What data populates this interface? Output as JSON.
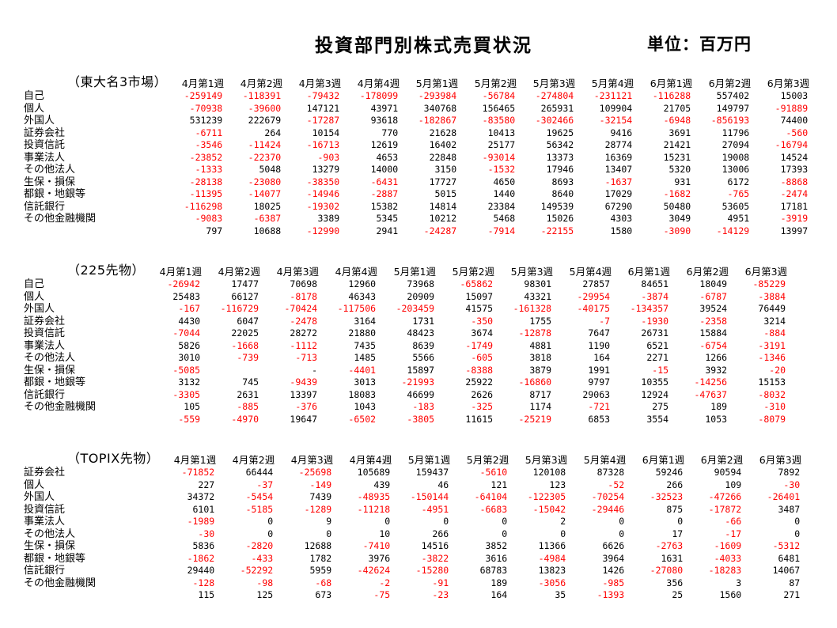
{
  "title": "投資部門別株式売買状況",
  "unit_label": "単位：百万円",
  "columns": [
    "4月第1週",
    "4月第2週",
    "4月第3週",
    "4月第4週",
    "5月第1週",
    "5月第2週",
    "5月第3週",
    "5月第4週",
    "6月第1週",
    "6月第2週",
    "6月第3週"
  ],
  "negative_color": "#ff0000",
  "positive_color": "#000000",
  "sections": [
    {
      "name": "（東大名3市場）",
      "rows": [
        {
          "label": "自己",
          "values": [
            "-259149",
            "-118391",
            "-79432",
            "-178099",
            "-293984",
            "-56784",
            "-274804",
            "-231121",
            "-116288",
            "557402",
            "15003"
          ]
        },
        {
          "label": "個人",
          "values": [
            "-70938",
            "-39600",
            "147121",
            "43971",
            "340768",
            "156465",
            "265931",
            "109904",
            "21705",
            "149797",
            "-91889"
          ]
        },
        {
          "label": "外国人",
          "values": [
            "531239",
            "222679",
            "-17287",
            "93618",
            "-182867",
            "-83580",
            "-302466",
            "-32154",
            "-6948",
            "-856193",
            "74400"
          ]
        },
        {
          "label": "証券会社",
          "values": [
            "-6711",
            "264",
            "10154",
            "770",
            "21628",
            "10413",
            "19625",
            "9416",
            "3691",
            "11796",
            "-560"
          ]
        },
        {
          "label": "投資信託",
          "values": [
            "-3546",
            "-11424",
            "-16713",
            "12619",
            "16402",
            "25177",
            "56342",
            "28774",
            "21421",
            "27094",
            "-16794"
          ]
        },
        {
          "label": "事業法人",
          "values": [
            "-23852",
            "-22370",
            "-903",
            "4653",
            "22848",
            "-93014",
            "13373",
            "16369",
            "15231",
            "19008",
            "14524"
          ]
        },
        {
          "label": "その他法人",
          "values": [
            "-1333",
            "5048",
            "13279",
            "14000",
            "3150",
            "-1532",
            "17946",
            "13407",
            "5320",
            "13006",
            "17393"
          ]
        },
        {
          "label": "生保・損保",
          "values": [
            "-28138",
            "-23080",
            "-38350",
            "-6431",
            "17727",
            "4650",
            "8693",
            "-1637",
            "931",
            "6172",
            "-8868"
          ]
        },
        {
          "label": "都銀・地銀等",
          "values": [
            "-11395",
            "-14077",
            "-14946",
            "-2887",
            "5015",
            "1440",
            "8640",
            "17029",
            "-1682",
            "-765",
            "-2474"
          ]
        },
        {
          "label": "信託銀行",
          "values": [
            "-116298",
            "18025",
            "-19302",
            "15382",
            "14814",
            "23384",
            "149539",
            "67290",
            "50480",
            "53605",
            "17181"
          ]
        },
        {
          "label": "その他金融機関",
          "values": [
            "-9083",
            "-6387",
            "3389",
            "5345",
            "10212",
            "5468",
            "15026",
            "4303",
            "3049",
            "4951",
            "-3919"
          ]
        },
        {
          "label": "",
          "values": [
            "797",
            "10688",
            "-12990",
            "2941",
            "-24287",
            "-7914",
            "-22155",
            "1580",
            "-3090",
            "-14129",
            "13997"
          ]
        }
      ]
    },
    {
      "name": "（225先物）",
      "rows": [
        {
          "label": "自己",
          "values": [
            "-26942",
            "17477",
            "70698",
            "12960",
            "73968",
            "-65862",
            "98301",
            "27857",
            "84651",
            "18049",
            "-85229"
          ]
        },
        {
          "label": "個人",
          "values": [
            "25483",
            "66127",
            "-8178",
            "46343",
            "20909",
            "15097",
            "43321",
            "-29954",
            "-3874",
            "-6787",
            "-3884"
          ]
        },
        {
          "label": "外国人",
          "values": [
            "-167",
            "-116729",
            "-70424",
            "-117506",
            "-203459",
            "41575",
            "-161328",
            "-40175",
            "-134357",
            "39524",
            "76449"
          ]
        },
        {
          "label": "証券会社",
          "values": [
            "4430",
            "6047",
            "-2478",
            "3164",
            "1731",
            "-350",
            "1755",
            "-7",
            "-1930",
            "-2358",
            "3214"
          ]
        },
        {
          "label": "投資信託",
          "values": [
            "-7044",
            "22025",
            "28272",
            "21880",
            "48423",
            "3674",
            "-12878",
            "7647",
            "26731",
            "15884",
            "-884"
          ]
        },
        {
          "label": "事業法人",
          "values": [
            "5826",
            "-1668",
            "-1112",
            "7435",
            "8639",
            "-1749",
            "4881",
            "1190",
            "6521",
            "-6754",
            "-3191"
          ]
        },
        {
          "label": "その他法人",
          "values": [
            "3010",
            "-739",
            "-713",
            "1485",
            "5566",
            "-605",
            "3818",
            "164",
            "2271",
            "1266",
            "-1346"
          ]
        },
        {
          "label": "生保・損保",
          "values": [
            "-5085",
            "",
            "-",
            "-4401",
            "15897",
            "-8388",
            "3879",
            "1991",
            "-15",
            "3932",
            "-20"
          ]
        },
        {
          "label": "都銀・地銀等",
          "values": [
            "3132",
            "745",
            "-9439",
            "3013",
            "-21993",
            "25922",
            "-16860",
            "9797",
            "10355",
            "-14256",
            "15153"
          ]
        },
        {
          "label": "信託銀行",
          "values": [
            "-3305",
            "2631",
            "13397",
            "18083",
            "46699",
            "2626",
            "8717",
            "29063",
            "12924",
            "-47637",
            "-8032"
          ]
        },
        {
          "label": "その他金融機関",
          "values": [
            "105",
            "-885",
            "-376",
            "1043",
            "-183",
            "-325",
            "1174",
            "-721",
            "275",
            "189",
            "-310"
          ]
        },
        {
          "label": "",
          "values": [
            "-559",
            "-4970",
            "19647",
            "-6502",
            "-3805",
            "11615",
            "-25219",
            "6853",
            "3554",
            "1053",
            "-8079"
          ]
        }
      ]
    },
    {
      "name": "（TOPIX先物）",
      "rows": [
        {
          "label": "証券会社",
          "values": [
            "-71852",
            "66444",
            "-25698",
            "105689",
            "159437",
            "-5610",
            "120108",
            "87328",
            "59246",
            "90594",
            "7892"
          ]
        },
        {
          "label": "個人",
          "values": [
            "227",
            "-37",
            "-149",
            "439",
            "46",
            "121",
            "123",
            "-52",
            "266",
            "109",
            "-30"
          ]
        },
        {
          "label": "外国人",
          "values": [
            "34372",
            "-5454",
            "7439",
            "-48935",
            "-150144",
            "-64104",
            "-122305",
            "-70254",
            "-32523",
            "-47266",
            "-26401"
          ]
        },
        {
          "label": "投資信託",
          "values": [
            "6101",
            "-5185",
            "-1289",
            "-11218",
            "-4951",
            "-6683",
            "-15042",
            "-29446",
            "875",
            "-17872",
            "3487"
          ]
        },
        {
          "label": "事業法人",
          "values": [
            "-1989",
            "0",
            "9",
            "0",
            "0",
            "0",
            "2",
            "0",
            "0",
            "-66",
            "0"
          ]
        },
        {
          "label": "その他法人",
          "values": [
            "-30",
            "0",
            "0",
            "10",
            "266",
            "0",
            "0",
            "0",
            "17",
            "-17",
            "0"
          ]
        },
        {
          "label": "生保・損保",
          "values": [
            "5836",
            "-2820",
            "12688",
            "-7410",
            "14516",
            "3852",
            "11366",
            "6626",
            "-2763",
            "-1609",
            "-5312"
          ]
        },
        {
          "label": "都銀・地銀等",
          "values": [
            "-1862",
            "-433",
            "1782",
            "3976",
            "-3822",
            "3616",
            "-4984",
            "3964",
            "1631",
            "-4033",
            "6481"
          ]
        },
        {
          "label": "信託銀行",
          "values": [
            "29440",
            "-52292",
            "5959",
            "-42624",
            "-15280",
            "68783",
            "13823",
            "1426",
            "-27080",
            "-18283",
            "14067"
          ]
        },
        {
          "label": "その他金融機関",
          "values": [
            "-128",
            "-98",
            "-68",
            "-2",
            "-91",
            "189",
            "-3056",
            "-985",
            "356",
            "3",
            "87"
          ]
        },
        {
          "label": "",
          "values": [
            "115",
            "125",
            "673",
            "-75",
            "-23",
            "164",
            "35",
            "-1393",
            "25",
            "1560",
            "271"
          ]
        }
      ]
    }
  ]
}
